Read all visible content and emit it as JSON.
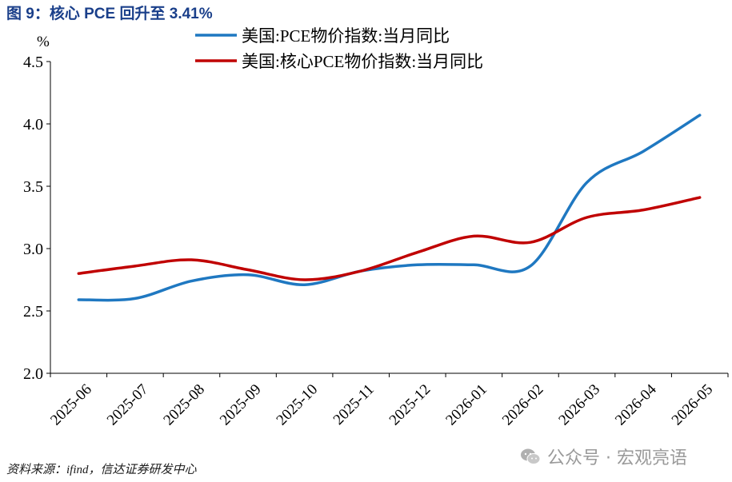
{
  "title": "图 9：核心 PCE 回升至 3.41%",
  "source": "资料来源：ifind，信达证券研发中心",
  "watermark": "公众号 · 宏观亮语",
  "chart_data": {
    "type": "line",
    "y_unit": "%",
    "ylim": [
      2.0,
      4.5
    ],
    "yticks": [
      "2.0",
      "2.5",
      "3.0",
      "3.5",
      "4.0",
      "4.5"
    ],
    "categories": [
      "2025-06",
      "2025-07",
      "2025-08",
      "2025-09",
      "2025-10",
      "2025-11",
      "2025-12",
      "2026-01",
      "2026-02",
      "2026-03",
      "2026-04",
      "2026-05"
    ],
    "grid": false,
    "legend_position": "top",
    "series": [
      {
        "name": "美国:PCE物价指数:当月同比",
        "color": "#1f78c1",
        "values": [
          2.59,
          2.6,
          2.74,
          2.79,
          2.71,
          2.82,
          2.87,
          2.87,
          2.86,
          3.53,
          3.78,
          4.07
        ]
      },
      {
        "name": "美国:核心PCE物价指数:当月同比",
        "color": "#c00000",
        "values": [
          2.8,
          2.86,
          2.91,
          2.83,
          2.75,
          2.82,
          2.97,
          3.1,
          3.05,
          3.25,
          3.31,
          3.41
        ]
      }
    ]
  }
}
